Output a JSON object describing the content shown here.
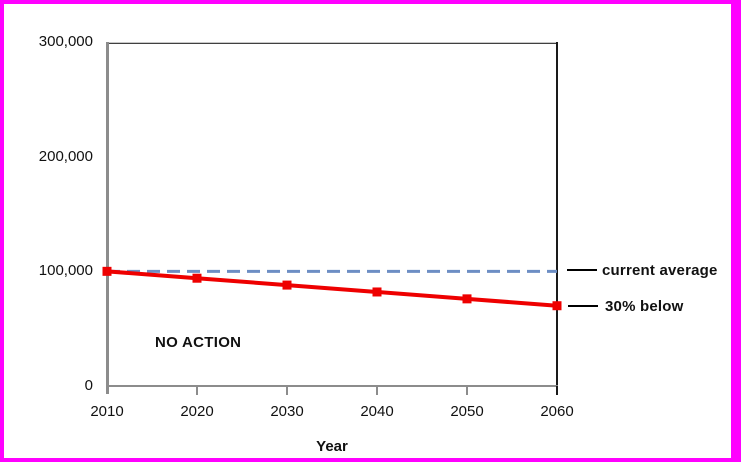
{
  "frame": {
    "color": "#ff00ff"
  },
  "chart_data": {
    "type": "line",
    "title": "",
    "xlabel": "Year",
    "ylabel": "",
    "xlim": [
      2010,
      2060
    ],
    "ylim": [
      0,
      300000
    ],
    "grid": false,
    "x": [
      2010,
      2020,
      2030,
      2040,
      2050,
      2060
    ],
    "xtick_labels": [
      "2010",
      "2020",
      "2030",
      "2040",
      "2050",
      "2060"
    ],
    "yticks": [
      0,
      100000,
      200000,
      300000
    ],
    "ytick_labels": [
      "0",
      "100,000",
      "200,000",
      "300,000"
    ],
    "series": [
      {
        "name": "NO ACTION",
        "type": "line",
        "values": [
          100000,
          94000,
          88000,
          82000,
          76000,
          70000
        ],
        "color": "#ee0000",
        "line_width": 4,
        "marker": "square",
        "marker_size": 9,
        "end_label": "30% below"
      },
      {
        "name": "current average",
        "type": "reference-line",
        "value": 100000,
        "color": "#6d8ec4",
        "line_width": 3,
        "dash": [
          13,
          7
        ]
      }
    ],
    "annotations": [
      {
        "text": "NO ACTION"
      },
      {
        "text": "current average"
      },
      {
        "text": "30% below"
      }
    ],
    "legend_position": "none"
  }
}
